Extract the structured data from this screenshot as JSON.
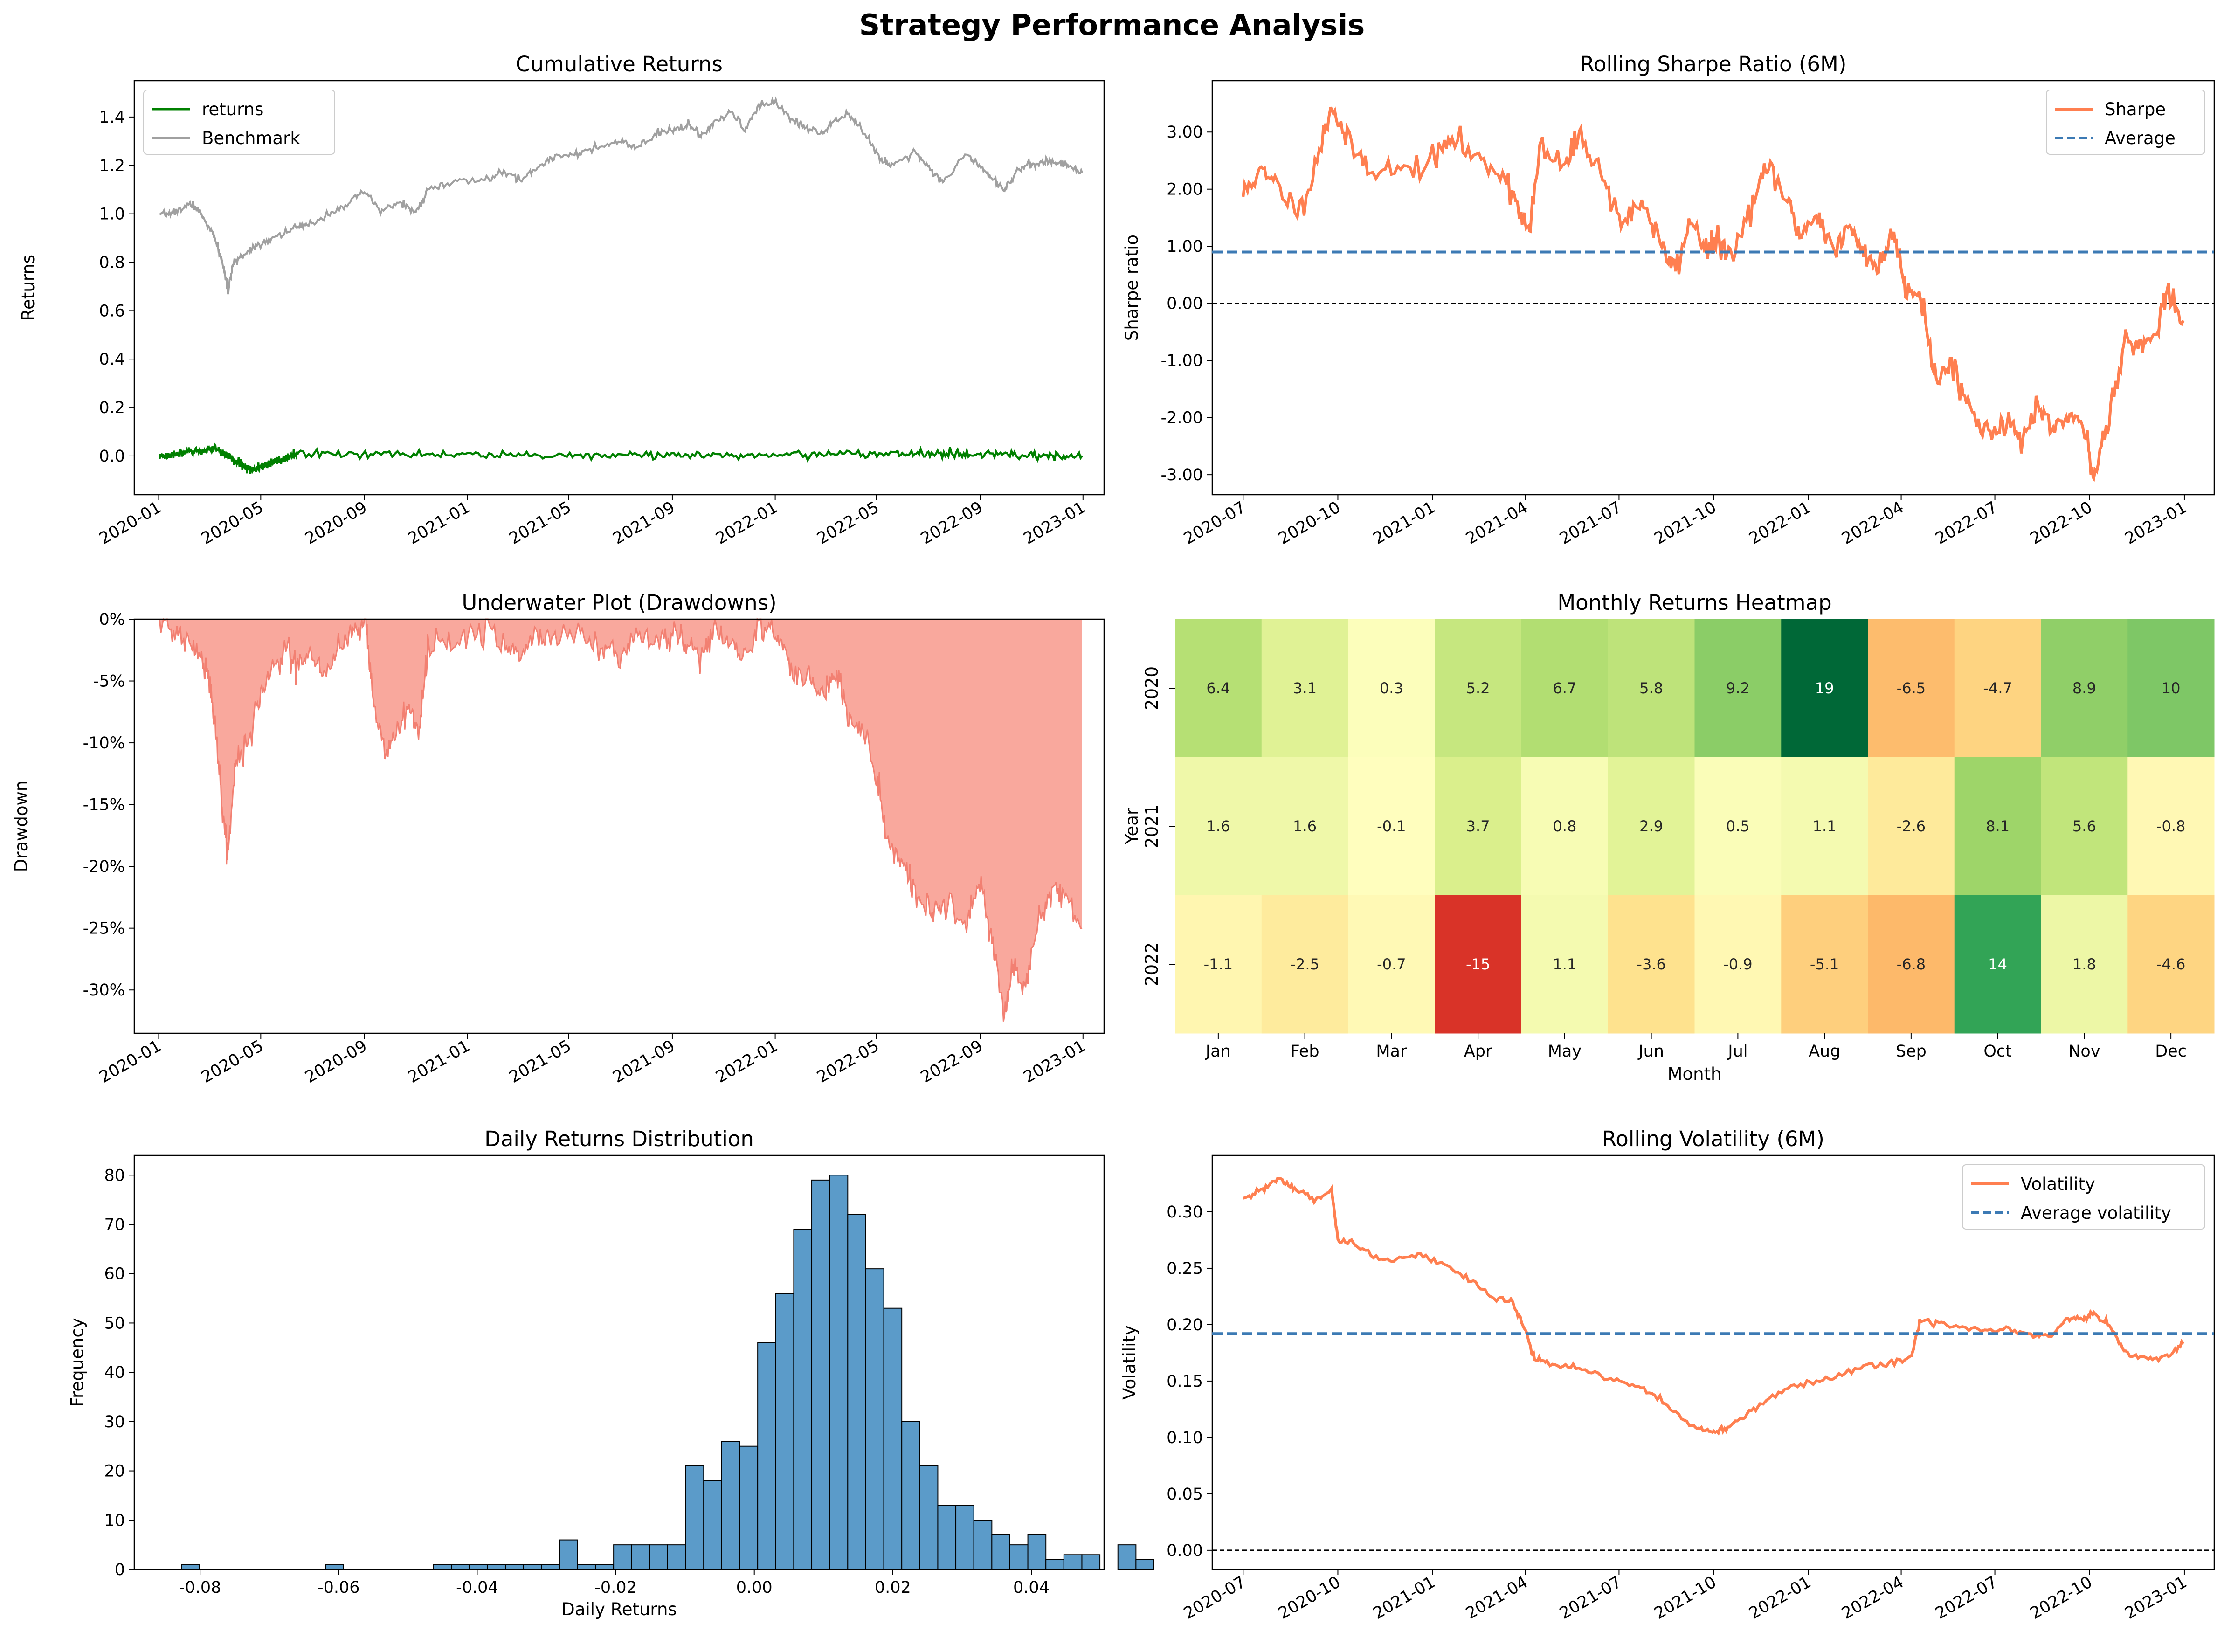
{
  "figure": {
    "suptitle": "Strategy Performance Analysis"
  },
  "colors": {
    "returns": "#008000",
    "benchmark": "#a0a0a0",
    "sharpe": "#ff7f50",
    "average": "#3c7ab4",
    "drawdown_fill": "#f9a89d",
    "drawdown_line": "#f28072",
    "histogram": "#5b9bc9",
    "zero_line": "#000000"
  },
  "chart_data": [
    {
      "id": "cumulative",
      "type": "line",
      "title": "Cumulative Returns",
      "xlabel": "",
      "ylabel": "Returns",
      "ylim": [
        -0.16,
        1.55
      ],
      "xlim": [
        "2019-12-03",
        "2023-01-26"
      ],
      "yticks": [
        0.0,
        0.2,
        0.4,
        0.6,
        0.8,
        1.0,
        1.2,
        1.4
      ],
      "ytick_labels": [
        "0.0",
        "0.2",
        "0.4",
        "0.6",
        "0.8",
        "1.0",
        "1.2",
        "1.4"
      ],
      "xticks": [
        "2020-01-01",
        "2020-05-01",
        "2020-09-01",
        "2021-01-01",
        "2021-05-01",
        "2021-09-01",
        "2022-01-01",
        "2022-05-01",
        "2022-09-01",
        "2023-01-01"
      ],
      "xtick_labels": [
        "2020-01",
        "2020-05",
        "2020-09",
        "2021-01",
        "2021-05",
        "2021-09",
        "2022-01",
        "2022-05",
        "2022-09",
        "2023-01"
      ],
      "legend_loc": "upper-left",
      "series": [
        {
          "name": "returns",
          "color": "#008000",
          "x_range": [
            "2020-01-02",
            "2022-12-31"
          ],
          "noise_amplitude": 0.008,
          "values": [
            [
              0.0,
              0.0
            ],
            [
              0.06,
              0.03
            ],
            [
              0.1,
              -0.06
            ],
            [
              0.15,
              0.01
            ],
            [
              0.5,
              0.0
            ],
            [
              0.8,
              0.01
            ],
            [
              1.0,
              0.0
            ]
          ]
        },
        {
          "name": "Benchmark",
          "color": "#a0a0a0",
          "x": [
            "2020-01-02",
            "2020-01-20",
            "2020-02-10",
            "2020-02-20",
            "2020-03-05",
            "2020-03-12",
            "2020-03-18",
            "2020-03-23",
            "2020-03-30",
            "2020-04-10",
            "2020-04-25",
            "2020-05-15",
            "2020-06-08",
            "2020-06-25",
            "2020-07-20",
            "2020-08-15",
            "2020-09-02",
            "2020-09-20",
            "2020-10-15",
            "2020-11-01",
            "2020-11-15",
            "2020-12-15",
            "2021-01-20",
            "2021-02-15",
            "2021-03-05",
            "2021-03-25",
            "2021-04-15",
            "2021-05-10",
            "2021-06-05",
            "2021-07-01",
            "2021-07-20",
            "2021-08-15",
            "2021-09-05",
            "2021-09-20",
            "2021-10-05",
            "2021-10-20",
            "2021-11-10",
            "2021-11-26",
            "2021-12-15",
            "2022-01-03",
            "2022-01-20",
            "2022-02-05",
            "2022-02-25",
            "2022-03-10",
            "2022-03-29",
            "2022-04-15",
            "2022-05-05",
            "2022-05-20",
            "2022-06-16",
            "2022-07-05",
            "2022-07-20",
            "2022-08-16",
            "2022-09-01",
            "2022-09-15",
            "2022-09-30",
            "2022-10-15",
            "2022-10-31",
            "2022-11-15",
            "2022-11-30",
            "2022-12-15",
            "2022-12-31"
          ],
          "values": [
            0.99,
            1.01,
            1.04,
            1.0,
            0.92,
            0.85,
            0.78,
            0.68,
            0.8,
            0.83,
            0.87,
            0.9,
            0.94,
            0.95,
            1.0,
            1.05,
            1.09,
            1.01,
            1.05,
            1.0,
            1.1,
            1.13,
            1.14,
            1.17,
            1.14,
            1.19,
            1.24,
            1.25,
            1.27,
            1.3,
            1.27,
            1.33,
            1.35,
            1.37,
            1.32,
            1.37,
            1.42,
            1.35,
            1.45,
            1.46,
            1.39,
            1.36,
            1.33,
            1.38,
            1.42,
            1.34,
            1.23,
            1.2,
            1.26,
            1.18,
            1.13,
            1.25,
            1.2,
            1.15,
            1.1,
            1.18,
            1.2,
            1.22,
            1.21,
            1.2,
            1.17
          ]
        }
      ]
    },
    {
      "id": "sharpe",
      "type": "line",
      "title": "Rolling Sharpe Ratio (6M)",
      "xlabel": "",
      "ylabel": "Sharpe ratio",
      "ylim": [
        -3.35,
        3.9
      ],
      "xlim": [
        "2020-06-01",
        "2023-01-30"
      ],
      "yticks": [
        3,
        2,
        1,
        0,
        -1,
        -2,
        -3
      ],
      "ytick_labels": [
        "3.00",
        "2.00",
        "1.00",
        "0.00",
        "-1.00",
        "-2.00",
        "-3.00"
      ],
      "xticks": [
        "2020-07-01",
        "2020-10-01",
        "2021-01-01",
        "2021-04-01",
        "2021-07-01",
        "2021-10-01",
        "2022-01-01",
        "2022-04-01",
        "2022-07-01",
        "2022-10-01",
        "2023-01-01"
      ],
      "xtick_labels": [
        "2020-07",
        "2020-10",
        "2021-01",
        "2021-04",
        "2021-07",
        "2021-10",
        "2022-01",
        "2022-04",
        "2022-07",
        "2022-10",
        "2023-01"
      ],
      "legend_loc": "upper-right",
      "reference_lines": [
        {
          "name": "Average",
          "y": 0.9,
          "style": "dashed",
          "color": "#3c7ab4"
        },
        {
          "y": 0.0,
          "style": "dotted",
          "color": "#000000"
        }
      ],
      "series": [
        {
          "name": "Sharpe",
          "color": "#ff7f50",
          "x": [
            "2020-07-01",
            "2020-07-15",
            "2020-08-01",
            "2020-08-25",
            "2020-09-15",
            "2020-09-25",
            "2020-10-10",
            "2020-11-01",
            "2020-12-01",
            "2021-01-01",
            "2021-01-20",
            "2021-02-15",
            "2021-03-10",
            "2021-03-28",
            "2021-04-05",
            "2021-04-15",
            "2021-05-10",
            "2021-05-25",
            "2021-06-15",
            "2021-07-05",
            "2021-07-25",
            "2021-08-10",
            "2021-08-25",
            "2021-09-10",
            "2021-09-25",
            "2021-10-05",
            "2021-10-20",
            "2021-11-10",
            "2021-11-25",
            "2021-12-10",
            "2021-12-25",
            "2022-01-10",
            "2022-01-25",
            "2022-02-10",
            "2022-02-25",
            "2022-03-10",
            "2022-03-25",
            "2022-04-05",
            "2022-04-20",
            "2022-05-05",
            "2022-05-20",
            "2022-06-05",
            "2022-06-25",
            "2022-07-10",
            "2022-07-25",
            "2022-08-10",
            "2022-08-25",
            "2022-09-10",
            "2022-09-28",
            "2022-10-05",
            "2022-10-20",
            "2022-11-05",
            "2022-11-20",
            "2022-12-05",
            "2022-12-15",
            "2022-12-31"
          ],
          "values": [
            1.9,
            2.3,
            2.1,
            1.6,
            2.8,
            3.5,
            2.8,
            2.4,
            2.3,
            2.5,
            2.9,
            2.5,
            2.3,
            1.6,
            1.2,
            2.7,
            2.4,
            3.0,
            2.2,
            1.4,
            1.8,
            1.0,
            0.6,
            1.5,
            0.9,
            1.1,
            0.8,
            1.9,
            2.4,
            1.8,
            1.2,
            1.6,
            0.9,
            1.3,
            0.9,
            0.6,
            1.3,
            0.3,
            0.2,
            -1.4,
            -1.0,
            -1.8,
            -2.3,
            -2.0,
            -2.4,
            -1.9,
            -2.2,
            -2.0,
            -2.3,
            -3.1,
            -1.9,
            -0.6,
            -0.8,
            -0.4,
            0.2,
            -0.3
          ]
        }
      ]
    },
    {
      "id": "underwater",
      "type": "area",
      "title": "Underwater Plot (Drawdowns)",
      "xlabel": "",
      "ylabel": "Drawdown",
      "ylim": [
        -0.335,
        0.0
      ],
      "xlim": [
        "2019-12-03",
        "2023-01-26"
      ],
      "yticks": [
        0.0,
        -0.05,
        -0.1,
        -0.15,
        -0.2,
        -0.25,
        -0.3
      ],
      "ytick_labels": [
        "0%",
        "-5%",
        "-10%",
        "-15%",
        "-20%",
        "-25%",
        "-30%"
      ],
      "xticks": [
        "2020-01-01",
        "2020-05-01",
        "2020-09-01",
        "2021-01-01",
        "2021-05-01",
        "2021-09-01",
        "2022-01-01",
        "2022-05-01",
        "2022-09-01",
        "2023-01-01"
      ],
      "xtick_labels": [
        "2020-01",
        "2020-05",
        "2020-09",
        "2021-01",
        "2021-05",
        "2021-09",
        "2022-01",
        "2022-05",
        "2022-09",
        "2023-01"
      ],
      "series": [
        {
          "name": "Drawdown",
          "color": "#f28072",
          "x": [
            "2020-01-02",
            "2020-01-20",
            "2020-02-05",
            "2020-02-20",
            "2020-03-01",
            "2020-03-10",
            "2020-03-18",
            "2020-03-23",
            "2020-04-01",
            "2020-04-15",
            "2020-05-01",
            "2020-05-15",
            "2020-06-01",
            "2020-06-15",
            "2020-07-01",
            "2020-07-15",
            "2020-08-01",
            "2020-08-20",
            "2020-09-02",
            "2020-09-10",
            "2020-09-25",
            "2020-10-10",
            "2020-10-25",
            "2020-11-05",
            "2020-11-15",
            "2020-12-15",
            "2021-01-15",
            "2021-02-15",
            "2021-03-05",
            "2021-03-25",
            "2021-04-15",
            "2021-05-15",
            "2021-06-10",
            "2021-07-01",
            "2021-07-20",
            "2021-08-15",
            "2021-09-05",
            "2021-09-20",
            "2021-10-05",
            "2021-10-20",
            "2021-11-10",
            "2021-11-28",
            "2021-12-15",
            "2022-01-03",
            "2022-01-20",
            "2022-02-10",
            "2022-03-01",
            "2022-03-15",
            "2022-03-29",
            "2022-04-15",
            "2022-05-01",
            "2022-05-15",
            "2022-06-01",
            "2022-06-16",
            "2022-07-05",
            "2022-07-20",
            "2022-08-16",
            "2022-09-01",
            "2022-09-15",
            "2022-09-30",
            "2022-10-10",
            "2022-10-25",
            "2022-11-10",
            "2022-11-25",
            "2022-12-10",
            "2022-12-31"
          ],
          "values": [
            0.0,
            -0.01,
            -0.02,
            -0.03,
            -0.05,
            -0.1,
            -0.16,
            -0.19,
            -0.12,
            -0.1,
            -0.06,
            -0.04,
            -0.02,
            -0.04,
            -0.03,
            -0.05,
            -0.02,
            -0.01,
            0.0,
            -0.06,
            -0.11,
            -0.09,
            -0.07,
            -0.09,
            -0.02,
            -0.02,
            -0.01,
            -0.02,
            -0.03,
            -0.01,
            -0.02,
            -0.01,
            -0.02,
            -0.03,
            -0.01,
            -0.02,
            -0.01,
            -0.02,
            -0.03,
            -0.01,
            -0.02,
            -0.03,
            0.0,
            -0.01,
            -0.04,
            -0.05,
            -0.06,
            -0.04,
            -0.08,
            -0.09,
            -0.13,
            -0.18,
            -0.2,
            -0.22,
            -0.24,
            -0.23,
            -0.25,
            -0.21,
            -0.26,
            -0.32,
            -0.28,
            -0.3,
            -0.24,
            -0.22,
            -0.22,
            -0.25
          ]
        }
      ]
    },
    {
      "id": "heatmap",
      "type": "heatmap",
      "title": "Monthly Returns Heatmap",
      "xlabel": "Month",
      "ylabel": "Year",
      "columns": [
        "Jan",
        "Feb",
        "Mar",
        "Apr",
        "May",
        "Jun",
        "Jul",
        "Aug",
        "Sep",
        "Oct",
        "Nov",
        "Dec"
      ],
      "rows": [
        "2020",
        "2021",
        "2022"
      ],
      "values": [
        [
          6.4,
          3.1,
          0.3,
          5.2,
          6.7,
          5.8,
          9.2,
          19,
          -6.5,
          -4.7,
          8.9,
          10
        ],
        [
          1.6,
          1.6,
          -0.1,
          3.7,
          0.8,
          2.9,
          0.5,
          1.1,
          -2.6,
          8.1,
          5.6,
          -0.8
        ],
        [
          -1.1,
          -2.5,
          -0.7,
          -15,
          1.1,
          -3.6,
          -0.9,
          -5.1,
          -6.8,
          14,
          1.8,
          -4.6
        ]
      ],
      "labels": [
        [
          "6.4",
          "3.1",
          "0.3",
          "5.2",
          "6.7",
          "5.8",
          "9.2",
          "19",
          "-6.5",
          "-4.7",
          "8.9",
          "10"
        ],
        [
          "1.6",
          "1.6",
          "-0.1",
          "3.7",
          "0.8",
          "2.9",
          "0.5",
          "1.1",
          "-2.6",
          "8.1",
          "5.6",
          "-0.8"
        ],
        [
          "-1.1",
          "-2.5",
          "-0.7",
          "-15",
          "1.1",
          "-3.6",
          "-0.9",
          "-5.1",
          "-6.8",
          "14",
          "1.8",
          "-4.6"
        ]
      ],
      "colormap": "RdYlGn",
      "vmin": -19,
      "vmax": 19
    },
    {
      "id": "histogram",
      "type": "bar",
      "title": "Daily Returns Distribution",
      "xlabel": "Daily Returns",
      "ylabel": "Frequency",
      "xlim": [
        -0.0895,
        0.0505
      ],
      "ylim": [
        0,
        84
      ],
      "bin_start": -0.0827,
      "bin_width": 0.0026,
      "values": [
        1,
        0,
        0,
        0,
        0,
        0,
        0,
        0,
        1,
        0,
        0,
        0,
        0,
        0,
        1,
        1,
        1,
        1,
        1,
        1,
        1,
        6,
        1,
        1,
        5,
        5,
        5,
        5,
        21,
        18,
        26,
        25,
        46,
        56,
        69,
        79,
        80,
        72,
        61,
        53,
        30,
        21,
        13,
        13,
        10,
        7,
        5,
        7,
        2,
        3,
        3,
        0,
        5,
        2
      ],
      "xticks": [
        -0.08,
        -0.06,
        -0.04,
        -0.02,
        0.0,
        0.02,
        0.04
      ],
      "xtick_labels": [
        "-0.08",
        "-0.06",
        "-0.04",
        "-0.02",
        "0.00",
        "0.02",
        "0.04"
      ],
      "yticks": [
        0,
        10,
        20,
        30,
        40,
        50,
        60,
        70,
        80
      ],
      "ytick_labels": [
        "0",
        "10",
        "20",
        "30",
        "40",
        "50",
        "60",
        "70",
        "80"
      ],
      "color": "#5b9bc9"
    },
    {
      "id": "volatility",
      "type": "line",
      "title": "Rolling Volatility (6M)",
      "xlabel": "",
      "ylabel": "Volatility",
      "ylim": [
        -0.017,
        0.35
      ],
      "xlim": [
        "2020-06-01",
        "2023-01-30"
      ],
      "yticks": [
        0.0,
        0.05,
        0.1,
        0.15,
        0.2,
        0.25,
        0.3
      ],
      "ytick_labels": [
        "0.00",
        "0.05",
        "0.10",
        "0.15",
        "0.20",
        "0.25",
        "0.30"
      ],
      "xticks": [
        "2020-07-01",
        "2020-10-01",
        "2021-01-01",
        "2021-04-01",
        "2021-07-01",
        "2021-10-01",
        "2022-01-01",
        "2022-04-01",
        "2022-07-01",
        "2022-10-01",
        "2023-01-01"
      ],
      "xtick_labels": [
        "2020-07",
        "2020-10",
        "2021-01",
        "2021-04",
        "2021-07",
        "2021-10",
        "2022-01",
        "2022-04",
        "2022-07",
        "2022-10",
        "2023-01"
      ],
      "legend_loc": "upper-right",
      "reference_lines": [
        {
          "name": "Average volatility",
          "y": 0.192,
          "style": "dashed",
          "color": "#3c7ab4"
        },
        {
          "y": 0.0,
          "style": "dotted",
          "color": "#000000"
        }
      ],
      "series": [
        {
          "name": "Volatility",
          "color": "#ff7f50",
          "x": [
            "2020-07-01",
            "2020-07-20",
            "2020-08-05",
            "2020-08-20",
            "2020-09-10",
            "2020-09-25",
            "2020-10-01",
            "2020-10-20",
            "2020-11-15",
            "2020-12-15",
            "2021-01-10",
            "2021-02-05",
            "2021-02-28",
            "2021-03-20",
            "2021-04-01",
            "2021-04-10",
            "2021-04-25",
            "2021-05-20",
            "2021-06-20",
            "2021-07-20",
            "2021-08-15",
            "2021-09-10",
            "2021-09-25",
            "2021-10-10",
            "2021-10-25",
            "2021-11-15",
            "2021-12-15",
            "2022-01-15",
            "2022-02-15",
            "2022-03-15",
            "2022-04-10",
            "2022-04-20",
            "2022-05-15",
            "2022-06-15",
            "2022-07-15",
            "2022-08-10",
            "2022-08-25",
            "2022-09-10",
            "2022-09-25",
            "2022-10-05",
            "2022-10-20",
            "2022-11-05",
            "2022-11-25",
            "2022-12-15",
            "2022-12-31"
          ],
          "values": [
            0.31,
            0.32,
            0.33,
            0.32,
            0.31,
            0.32,
            0.275,
            0.27,
            0.255,
            0.262,
            0.255,
            0.24,
            0.225,
            0.22,
            0.195,
            0.17,
            0.165,
            0.162,
            0.152,
            0.145,
            0.13,
            0.11,
            0.105,
            0.107,
            0.115,
            0.13,
            0.145,
            0.15,
            0.16,
            0.165,
            0.17,
            0.205,
            0.2,
            0.195,
            0.195,
            0.19,
            0.19,
            0.205,
            0.205,
            0.21,
            0.2,
            0.175,
            0.17,
            0.172,
            0.183
          ]
        }
      ]
    }
  ]
}
